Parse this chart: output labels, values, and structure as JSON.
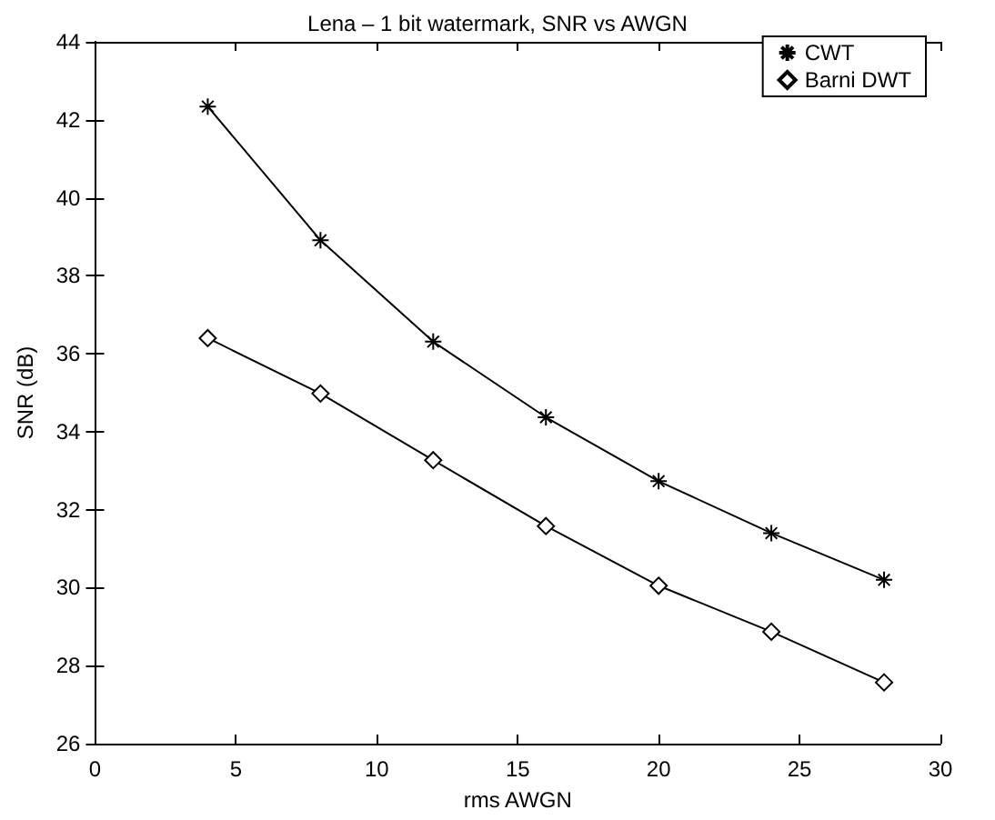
{
  "chart_data": {
    "type": "line",
    "title": "Lena – 1 bit watermark, SNR vs AWGN",
    "xlabel": "rms AWGN",
    "ylabel": "SNR (dB)",
    "x": [
      4,
      8,
      12,
      16,
      20,
      24,
      28
    ],
    "series": [
      {
        "name": "CWT",
        "color": "#000000",
        "marker": "cross",
        "values": [
          42.34,
          38.91,
          36.31,
          34.37,
          32.73,
          31.4,
          30.2
        ]
      },
      {
        "name": "Barni DWT",
        "color": "#000000",
        "marker": "diamond",
        "values": [
          36.4,
          34.98,
          33.27,
          31.58,
          30.05,
          28.87,
          27.57
        ]
      }
    ],
    "xlim": [
      0,
      30
    ],
    "xticks": [
      0,
      5,
      10,
      15,
      20,
      25,
      30
    ],
    "ylim": [
      26,
      44
    ],
    "yticks": [
      26,
      28,
      30,
      32,
      34,
      36,
      38,
      40,
      42,
      44
    ],
    "grid": false,
    "legend": "top right",
    "line_style": "solid"
  }
}
